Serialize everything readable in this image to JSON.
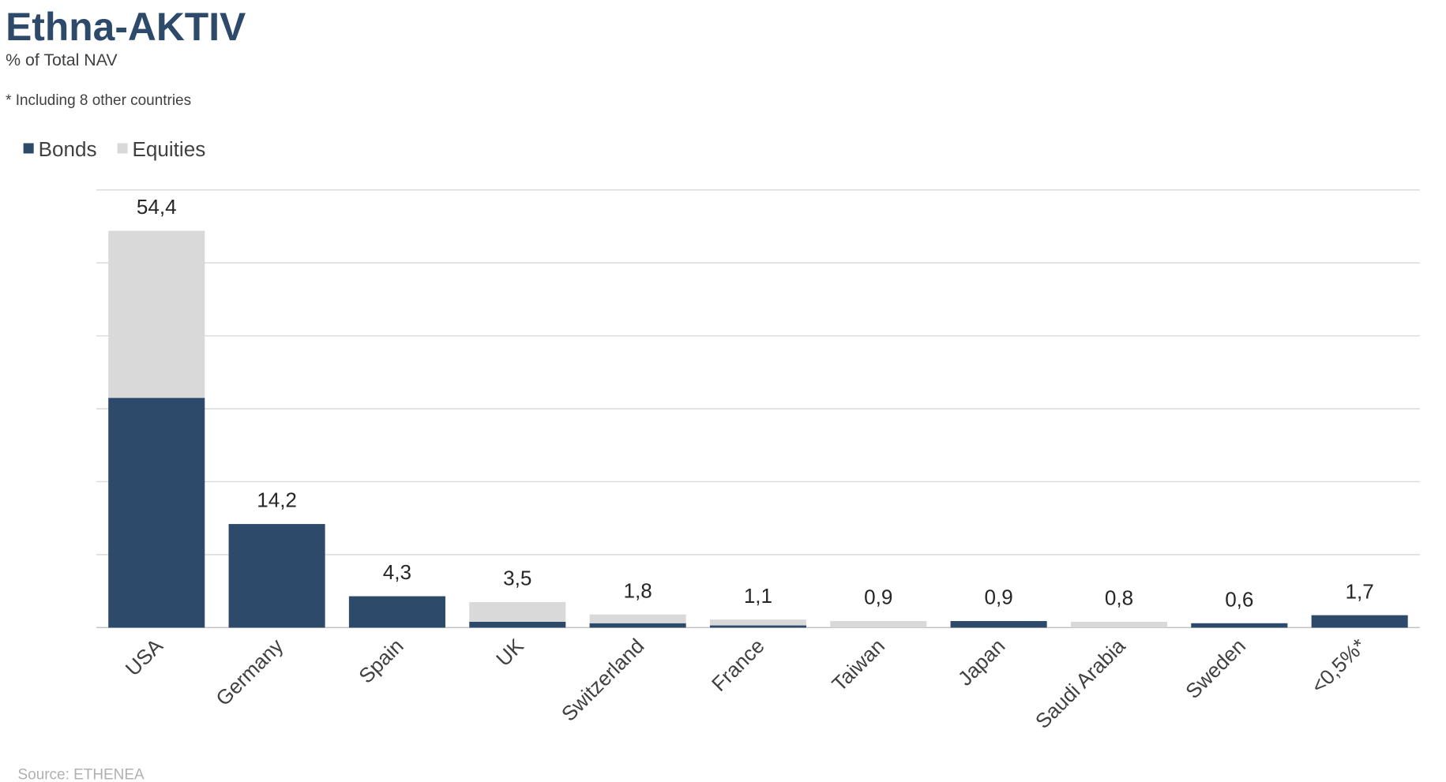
{
  "chart_data": {
    "type": "stacked-bar",
    "title": "Ethna-AKTIV",
    "subtitle": "% of Total NAV",
    "note": "* Including 8 other countries",
    "source": "Source: ETHENEA",
    "categories": [
      "USA",
      "Germany",
      "Spain",
      "UK",
      "Switzerland",
      "France",
      "Taiwan",
      "Japan",
      "Saudi Arabia",
      "Sweden",
      "<0,5%*"
    ],
    "series": [
      {
        "name": "Bonds",
        "color": "#2e4a6b",
        "values": [
          31.5,
          14.2,
          4.3,
          0.8,
          0.6,
          0.3,
          0,
          0.9,
          0,
          0.6,
          1.7
        ]
      },
      {
        "name": "Equities",
        "color": "#d9d9d9",
        "values": [
          22.9,
          0,
          0,
          2.7,
          1.2,
          0.8,
          0.9,
          0,
          0.8,
          0,
          0
        ]
      }
    ],
    "totals": [
      54.4,
      14.2,
      4.3,
      3.5,
      1.8,
      1.1,
      0.9,
      0.9,
      0.8,
      0.6,
      1.7
    ],
    "total_labels": [
      "54,4",
      "14,2",
      "4,3",
      "3,5",
      "1,8",
      "1,1",
      "0,9",
      "0,9",
      "0,8",
      "0,6",
      "1,7"
    ],
    "ylim": [
      0,
      60
    ],
    "yticks": [
      0,
      10,
      20,
      30,
      40,
      50,
      60
    ],
    "grid": true,
    "legend": "top-left"
  }
}
